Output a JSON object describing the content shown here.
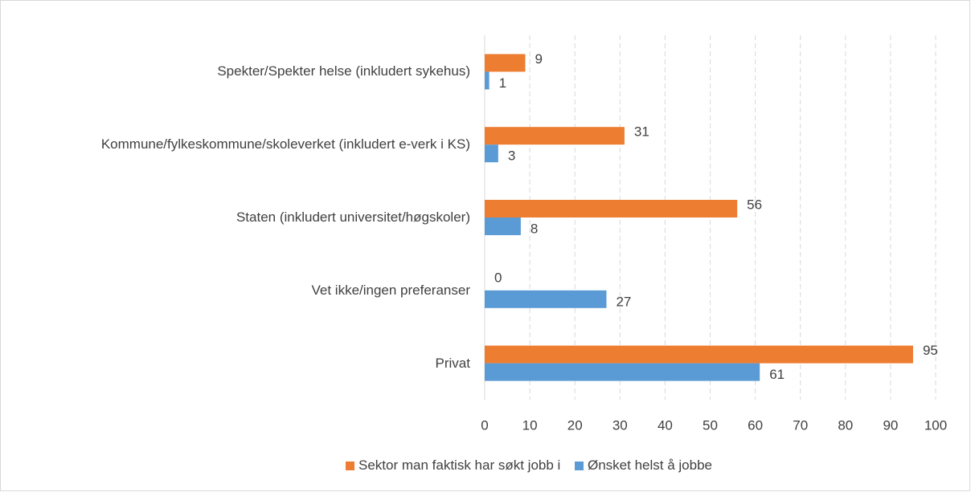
{
  "chart_data": {
    "type": "bar",
    "orientation": "horizontal",
    "categories": [
      "Spekter/Spekter helse (inkludert sykehus)",
      "Kommune/fylkeskommune/skoleverket (inkludert e-verk i KS)",
      "Staten (inkludert universitet/høgskoler)",
      "Vet ikke/ingen preferanser",
      "Privat"
    ],
    "series": [
      {
        "name": "Sektor man faktisk har søkt jobb i",
        "color": "#ed7d31",
        "values": [
          9,
          31,
          56,
          0,
          95
        ]
      },
      {
        "name": "Ønsket helst å jobbe",
        "color": "#5b9bd5",
        "values": [
          1,
          3,
          8,
          27,
          61
        ]
      }
    ],
    "xlim": [
      0,
      100
    ],
    "xticks": [
      0,
      10,
      20,
      30,
      40,
      50,
      60,
      70,
      80,
      90,
      100
    ],
    "grid": true,
    "legend": "bottom"
  }
}
